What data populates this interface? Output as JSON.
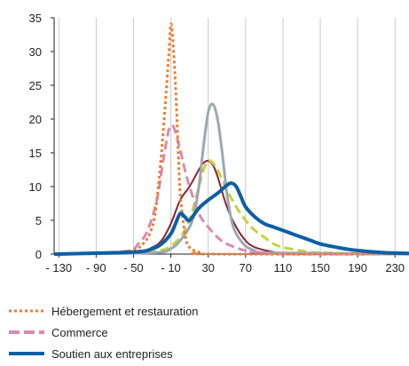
{
  "chart_data": {
    "type": "line",
    "title": "",
    "xlabel": "",
    "ylabel": "",
    "xlim": [
      -135,
      245
    ],
    "ylim": [
      0,
      35
    ],
    "x_ticks": [
      -130,
      -90,
      -50,
      -10,
      30,
      70,
      110,
      150,
      190,
      230
    ],
    "x_tick_labels": [
      "- 130",
      "- 90",
      "- 50",
      "- 10",
      "30",
      "70",
      "110",
      "150",
      "190",
      "230"
    ],
    "y_ticks": [
      0,
      5,
      10,
      15,
      20,
      25,
      30,
      35
    ],
    "grid": "vertical",
    "legend_position": "bottom-left",
    "series": [
      {
        "name": "Hébergement et restauration",
        "color": "#F07C2A",
        "style": "dotted",
        "x": [
          -135,
          -60,
          -40,
          -30,
          -25,
          -20,
          -15,
          -12,
          -10,
          -8,
          -5,
          -2,
          0,
          5,
          10,
          20,
          30,
          245
        ],
        "y": [
          0,
          0.3,
          1.5,
          4,
          8,
          15,
          24,
          30,
          34,
          32,
          25,
          15,
          9,
          3,
          1,
          0.3,
          0,
          0
        ]
      },
      {
        "name": "Commerce",
        "color": "#D98AB8",
        "style": "dashed",
        "x": [
          -135,
          -60,
          -45,
          -35,
          -25,
          -18,
          -12,
          -8,
          -5,
          0,
          5,
          10,
          20,
          30,
          40,
          50,
          70,
          90,
          110,
          245
        ],
        "y": [
          0,
          0.4,
          1.5,
          3.5,
          8,
          14,
          18.5,
          19,
          18,
          15.5,
          12.5,
          10,
          6,
          4,
          2.5,
          1.5,
          0.5,
          0.2,
          0,
          0
        ]
      },
      {
        "name": "Soutien aux entreprises",
        "color": "#0B5FA5",
        "style": "solid",
        "x": [
          -135,
          -50,
          -30,
          -20,
          -10,
          -5,
          0,
          5,
          10,
          20,
          30,
          40,
          50,
          55,
          60,
          65,
          70,
          80,
          90,
          100,
          110,
          120,
          130,
          140,
          150,
          160,
          180,
          200,
          220,
          245
        ],
        "y": [
          0,
          0.3,
          0.8,
          1.5,
          3,
          4.5,
          6,
          5.5,
          5,
          6.8,
          8,
          9,
          10.2,
          10.5,
          10,
          8.5,
          7,
          5.5,
          4.5,
          4,
          3.5,
          3,
          2.5,
          2,
          1.5,
          1.2,
          0.7,
          0.4,
          0.2,
          0.1
        ]
      },
      {
        "name": "",
        "color": "#8E2233",
        "style": "solid",
        "x": [
          -135,
          -50,
          -30,
          -20,
          -10,
          0,
          10,
          20,
          25,
          30,
          35,
          40,
          50,
          60,
          70,
          80,
          100,
          120,
          245
        ],
        "y": [
          0,
          0.2,
          1,
          2,
          4.5,
          8,
          10,
          12.5,
          13.5,
          13.8,
          13.2,
          11.5,
          7,
          4,
          2,
          1,
          0.3,
          0,
          0
        ]
      },
      {
        "name": "",
        "color": "#C8D23C",
        "style": "dashed",
        "x": [
          -135,
          -50,
          -20,
          -10,
          0,
          10,
          20,
          25,
          30,
          35,
          40,
          45,
          50,
          60,
          70,
          80,
          90,
          100,
          110,
          130,
          150,
          245
        ],
        "y": [
          0,
          0.2,
          0.6,
          1.2,
          2.5,
          5,
          10,
          12.5,
          13.8,
          13.5,
          12.5,
          11,
          9.5,
          7,
          5,
          3.5,
          2.5,
          1.5,
          1,
          0.5,
          0.2,
          0
        ]
      },
      {
        "name": "",
        "color": "#9AA8B4",
        "style": "solid",
        "x": [
          -135,
          -30,
          -10,
          0,
          10,
          15,
          20,
          25,
          30,
          35,
          40,
          45,
          50,
          55,
          60,
          70,
          80,
          90,
          245
        ],
        "y": [
          0,
          0.2,
          0.8,
          2,
          4,
          6,
          10,
          16,
          21,
          22.2,
          20,
          15,
          9,
          5,
          3,
          1.2,
          0.5,
          0.2,
          0
        ]
      }
    ]
  }
}
